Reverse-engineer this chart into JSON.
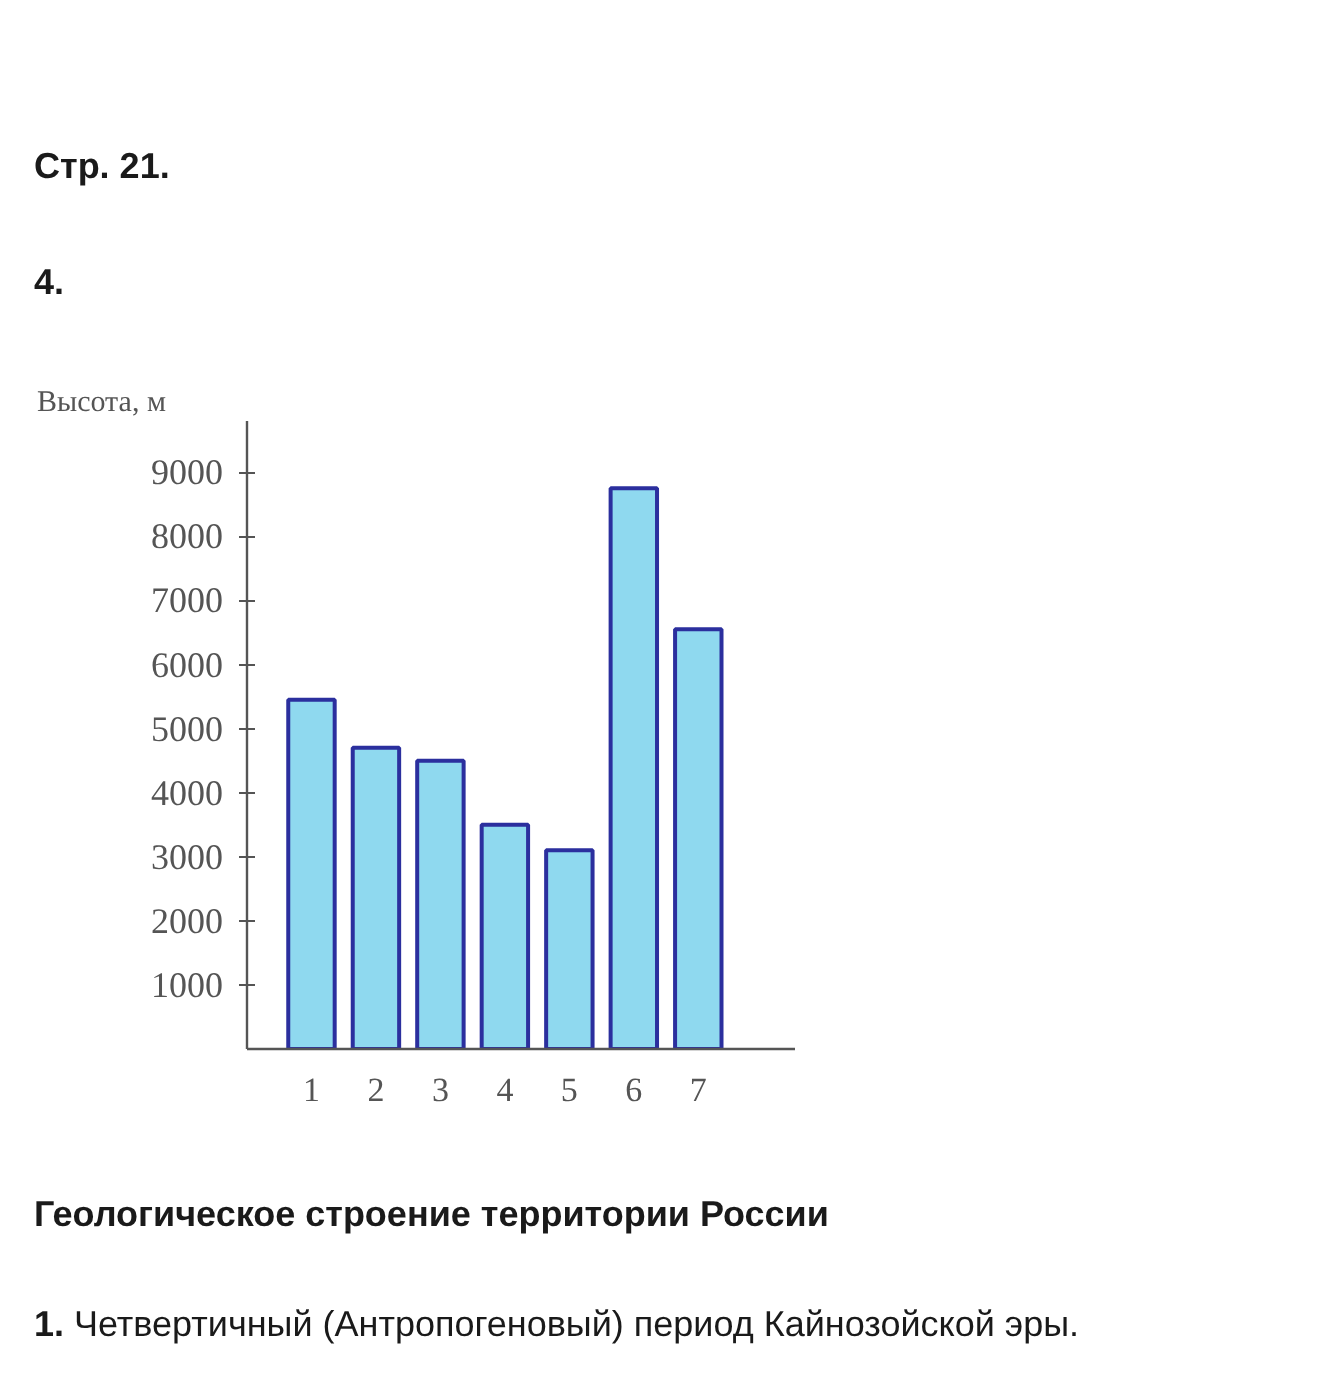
{
  "chart_data": {
    "type": "bar",
    "title": "Стр. 21.",
    "subtitle": "4.",
    "ylabel": "Высота, м",
    "categories": [
      "1",
      "2",
      "3",
      "4",
      "5",
      "6",
      "7"
    ],
    "values": [
      5450,
      4700,
      4500,
      3500,
      3100,
      8750,
      6550
    ],
    "color": "#8fd9ef",
    "ylim": [
      0,
      9800
    ],
    "yticks": [
      1000,
      2000,
      3000,
      4000,
      5000,
      6000,
      7000,
      8000,
      9000
    ],
    "annotations": [
      "Геологическое строение территории России",
      "1. Четвертичный (Антропогеновый) период Кайнозойской эры."
    ]
  }
}
